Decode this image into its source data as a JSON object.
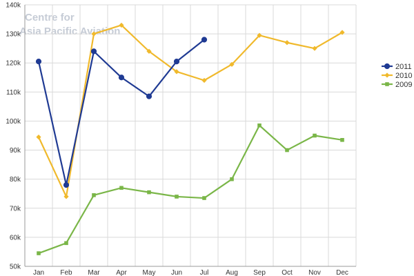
{
  "watermark": {
    "line1": "Centre for",
    "line2": "Asia Pacific Aviation"
  },
  "chart_data": {
    "type": "line",
    "categories": [
      "Jan",
      "Feb",
      "Mar",
      "Apr",
      "May",
      "Jun",
      "Jul",
      "Aug",
      "Sep",
      "Oct",
      "Nov",
      "Dec"
    ],
    "ylim": [
      50000,
      140000
    ],
    "yticks": [
      50000,
      60000,
      70000,
      80000,
      90000,
      100000,
      110000,
      120000,
      130000,
      140000
    ],
    "ytick_labels": [
      "50k",
      "60k",
      "70k",
      "80k",
      "90k",
      "100k",
      "110k",
      "120k",
      "130k",
      "140k"
    ],
    "grid": true,
    "legend_position": "right",
    "series": [
      {
        "name": "2011",
        "color": "#1f3a93",
        "marker": "circle",
        "values": [
          120500,
          78000,
          124000,
          115000,
          108500,
          120500,
          128000,
          null,
          null,
          null,
          null,
          null
        ]
      },
      {
        "name": "2010",
        "color": "#f0b92c",
        "marker": "diamond",
        "values": [
          94500,
          74000,
          130000,
          133000,
          124000,
          117000,
          114000,
          119500,
          129500,
          127000,
          125000,
          130500
        ]
      },
      {
        "name": "2009",
        "color": "#7ab648",
        "marker": "square",
        "values": [
          54500,
          58000,
          74500,
          77000,
          75500,
          74000,
          73500,
          80000,
          98500,
          90000,
          95000,
          93500
        ]
      }
    ]
  }
}
